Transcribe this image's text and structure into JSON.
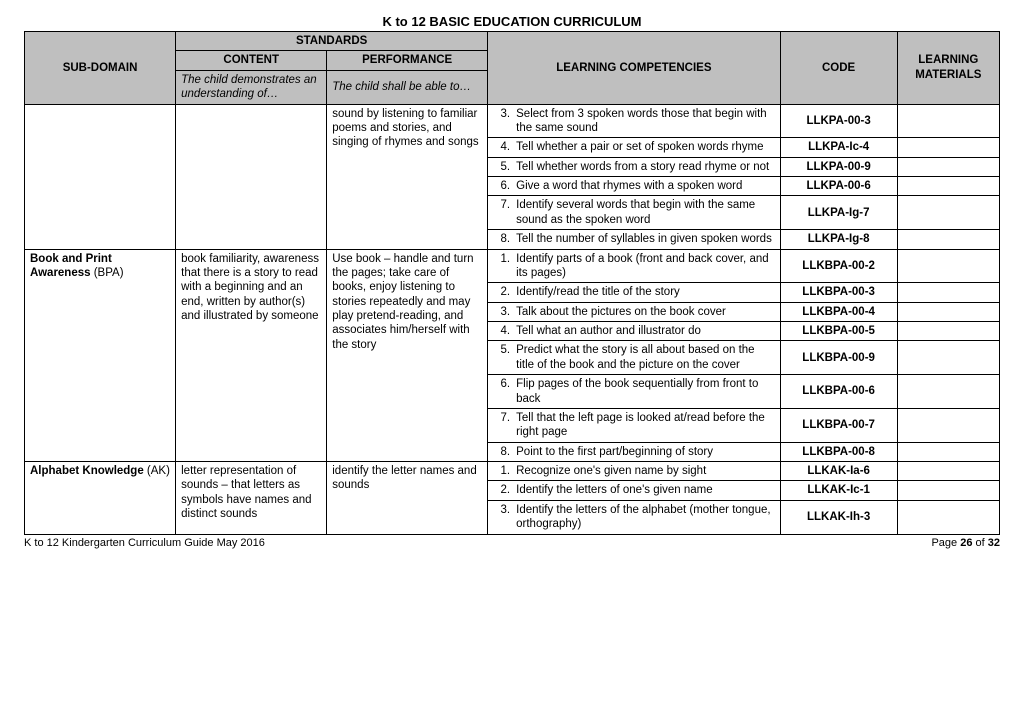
{
  "title": "K to 12 BASIC EDUCATION CURRICULUM",
  "headers": {
    "sub_domain": "SUB-DOMAIN",
    "standards": "STANDARDS",
    "content": "CONTENT",
    "performance": "PERFORMANCE",
    "content_sub": "The child demonstrates an understanding of…",
    "performance_sub": "The child shall be able to…",
    "lc": "LEARNING COMPETENCIES",
    "code": "CODE",
    "lm": "LEARNING MATERIALS"
  },
  "section1": {
    "perf_cont": "sound by listening to familiar poems and stories, and singing of rhymes and songs",
    "rows": [
      {
        "n": "3.",
        "lc": "Select from 3  spoken words those that begin with the same sound",
        "code": "LLKPA-00-3"
      },
      {
        "n": "4.",
        "lc": "Tell whether a pair or set of spoken words rhyme",
        "code": "LLKPA-Ic-4"
      },
      {
        "n": "5.",
        "lc": "Tell whether words from a story read rhyme or not",
        "code": "LLKPA-00-9"
      },
      {
        "n": "6.",
        "lc": "Give a word that rhymes with a spoken word",
        "code": "LLKPA-00-6"
      },
      {
        "n": "7.",
        "lc": "Identify several words that begin with the same sound as the spoken word",
        "code": "LLKPA-Ig-7"
      },
      {
        "n": "8.",
        "lc": "Tell the number of syllables in  given spoken words",
        "code": "LLKPA-Ig-8"
      }
    ]
  },
  "section2": {
    "domain_b": "Book and Print Awareness",
    "domain_n": " (BPA)",
    "content": "book familiarity, awareness that there is a story to read with a beginning and an end, written by author(s) and illustrated by someone",
    "perf": "Use book – handle and turn the pages; take care of books, enjoy listening to stories repeatedly and may play pretend-reading, and associates him/herself with the story",
    "rows": [
      {
        "n": "1.",
        "lc": "Identify parts of a book (front and back cover, and its pages)",
        "code": "LLKBPA-00-2"
      },
      {
        "n": "2.",
        "lc": "Identify/read the title of the story",
        "code": "LLKBPA-00-3"
      },
      {
        "n": "3.",
        "lc": "Talk about the pictures on the book cover",
        "code": "LLKBPA-00-4"
      },
      {
        "n": "4.",
        "lc": "Tell what an author and illustrator do",
        "code": "LLKBPA-00-5"
      },
      {
        "n": "5.",
        "lc": "Predict what the story is all about based on the title of the book and the picture on the cover",
        "code": "LLKBPA-00-9"
      },
      {
        "n": "6.",
        "lc": "Flip pages of the book sequentially from front to back",
        "code": "LLKBPA-00-6"
      },
      {
        "n": "7.",
        "lc": "Tell that the left page is looked at/read before the right page",
        "code": "LLKBPA-00-7"
      },
      {
        "n": "8.",
        "lc": "Point to the first part/beginning of story",
        "code": "LLKBPA-00-8"
      }
    ]
  },
  "section3": {
    "domain_b": "Alphabet Knowledge",
    "domain_n": " (AK)",
    "content": "letter representation of sounds – that letters as symbols have names and distinct sounds",
    "perf": "identify the letter names and sounds",
    "rows": [
      {
        "n": "1.",
        "lc": "Recognize one's given name by sight",
        "code": "LLKAK-Ia-6"
      },
      {
        "n": "2.",
        "lc": "Identify the letters of one's given name",
        "code": "LLKAK-Ic-1"
      },
      {
        "n": "3.",
        "lc": "Identify the letters of the alphabet (mother tongue, orthography)",
        "code": "LLKAK-Ih-3"
      }
    ]
  },
  "footer": {
    "left": "K to 12 Kindergarten Curriculum Guide May 2016",
    "page_prefix": "Page ",
    "page_cur": "26",
    "page_of": " of ",
    "page_total": "32"
  }
}
